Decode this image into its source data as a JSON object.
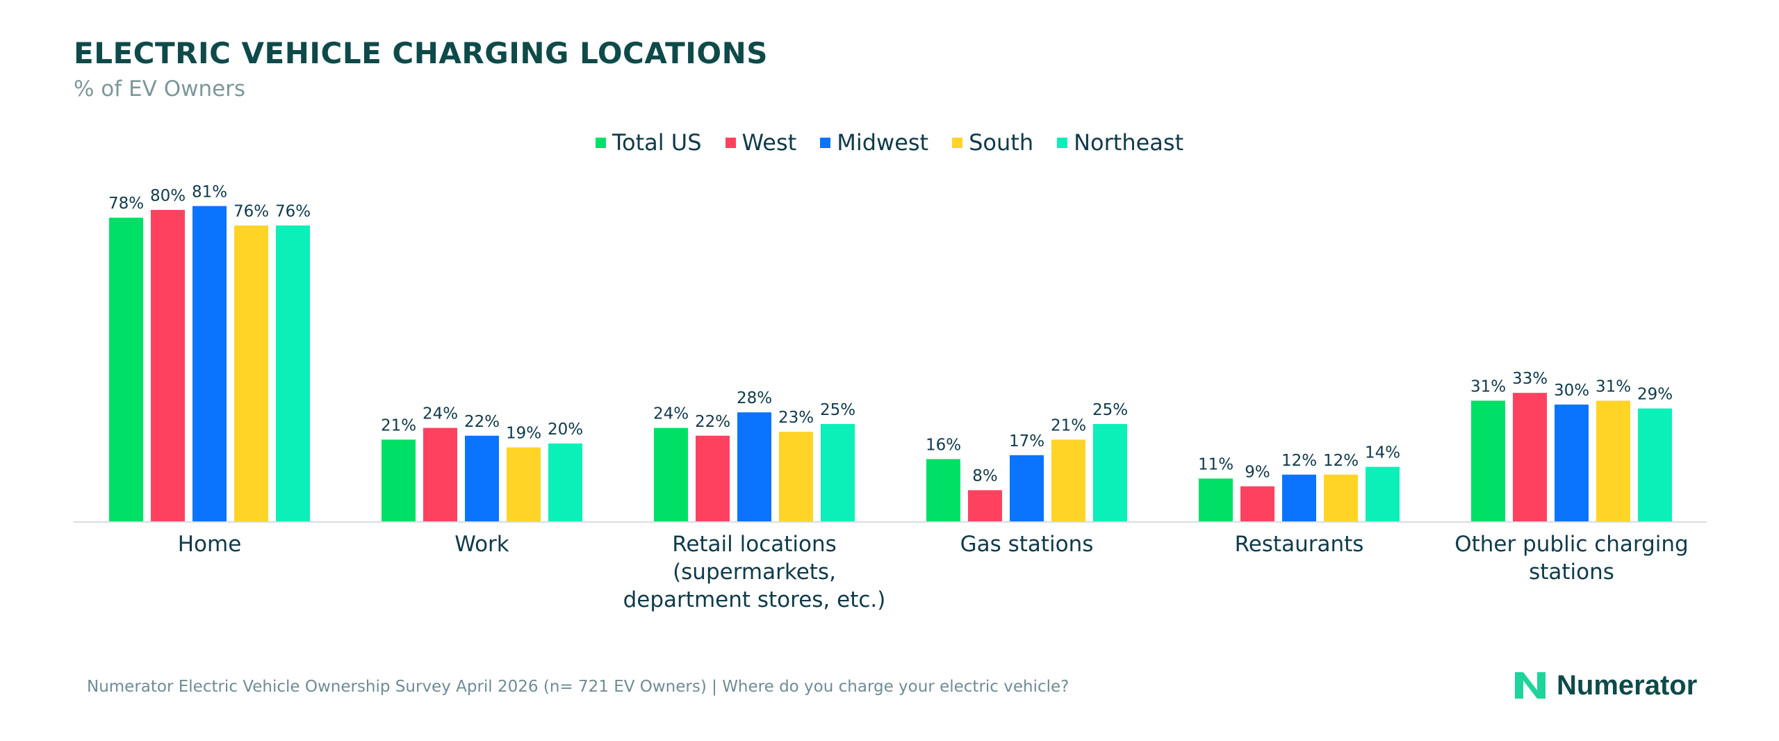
{
  "header": {
    "title": "ELECTRIC VEHICLE CHARGING LOCATIONS",
    "subtitle": "% of EV Owners"
  },
  "chart_data": {
    "type": "bar",
    "title": "ELECTRIC VEHICLE CHARGING LOCATIONS",
    "subtitle": "% of EV Owners",
    "categories": [
      [
        "Home"
      ],
      [
        "Work"
      ],
      [
        "Retail locations",
        "(supermarkets,",
        "department stores, etc.)"
      ],
      [
        "Gas stations"
      ],
      [
        "Restaurants"
      ],
      [
        "Other public charging",
        "stations"
      ]
    ],
    "series": [
      {
        "name": "Total US",
        "color": "#00e066",
        "values": [
          78,
          21,
          24,
          16,
          11,
          31
        ]
      },
      {
        "name": "West",
        "color": "#ff4160",
        "values": [
          80,
          24,
          22,
          8,
          9,
          33
        ]
      },
      {
        "name": "Midwest",
        "color": "#0a74ff",
        "values": [
          81,
          22,
          28,
          17,
          12,
          30
        ]
      },
      {
        "name": "South",
        "color": "#ffd426",
        "values": [
          76,
          19,
          23,
          21,
          12,
          31
        ]
      },
      {
        "name": "Northeast",
        "color": "#0af0b8",
        "values": [
          76,
          20,
          25,
          25,
          14,
          29
        ]
      }
    ],
    "value_suffix": "%",
    "ylim": [
      0,
      100
    ],
    "legend_position": "top-center",
    "grid": false
  },
  "footer": {
    "source": "Numerator Electric Vehicle Ownership Survey April 2026 (n= 721 EV Owners) | Where do you charge your electric vehicle?"
  },
  "logo": {
    "text": "Numerator",
    "color": "#1ed49a"
  }
}
